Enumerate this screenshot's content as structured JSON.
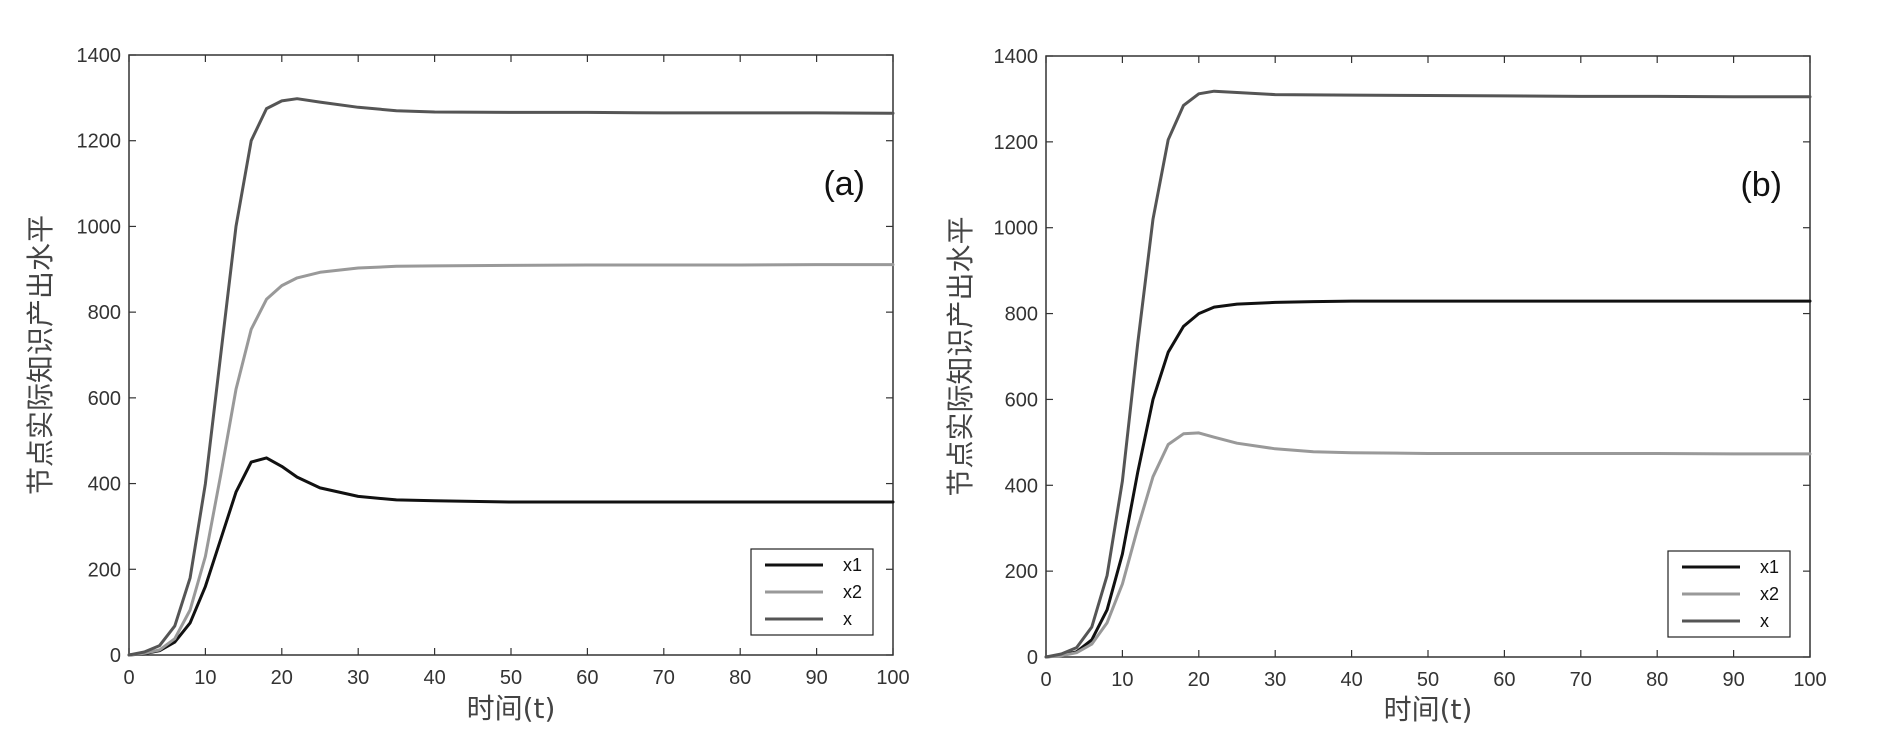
{
  "chart_data": [
    {
      "type": "line",
      "panel_label": "(a)",
      "xlabel": "时间(t)",
      "ylabel": "节点实际知识产出水平",
      "xlim": [
        0,
        100
      ],
      "ylim": [
        0,
        1400
      ],
      "x_ticks": [
        "0",
        "10",
        "20",
        "30",
        "40",
        "50",
        "60",
        "70",
        "80",
        "90",
        "100"
      ],
      "y_ticks": [
        "0",
        "200",
        "400",
        "600",
        "800",
        "1000",
        "1200",
        "1400"
      ],
      "grid": false,
      "legend_position": "bottom-right",
      "series": [
        {
          "name": "x1",
          "color": "#111111",
          "points": [
            [
              0,
              0
            ],
            [
              2,
              3
            ],
            [
              4,
              10
            ],
            [
              6,
              30
            ],
            [
              8,
              75
            ],
            [
              10,
              160
            ],
            [
              12,
              270
            ],
            [
              14,
              380
            ],
            [
              16,
              450
            ],
            [
              18,
              460
            ],
            [
              20,
              440
            ],
            [
              22,
              415
            ],
            [
              25,
              390
            ],
            [
              30,
              370
            ],
            [
              35,
              362
            ],
            [
              40,
              360
            ],
            [
              50,
              357
            ],
            [
              60,
              357
            ],
            [
              70,
              357
            ],
            [
              80,
              357
            ],
            [
              90,
              357
            ],
            [
              100,
              357
            ]
          ]
        },
        {
          "name": "x2",
          "color": "#999999",
          "points": [
            [
              0,
              0
            ],
            [
              2,
              4
            ],
            [
              4,
              12
            ],
            [
              6,
              38
            ],
            [
              8,
              105
            ],
            [
              10,
              230
            ],
            [
              12,
              420
            ],
            [
              14,
              620
            ],
            [
              16,
              760
            ],
            [
              18,
              830
            ],
            [
              20,
              862
            ],
            [
              22,
              880
            ],
            [
              25,
              893
            ],
            [
              30,
              903
            ],
            [
              35,
              907
            ],
            [
              40,
              908
            ],
            [
              50,
              909
            ],
            [
              60,
              910
            ],
            [
              70,
              910
            ],
            [
              80,
              910
            ],
            [
              90,
              911
            ],
            [
              100,
              911
            ]
          ]
        },
        {
          "name": "x",
          "color": "#555555",
          "points": [
            [
              0,
              0
            ],
            [
              2,
              7
            ],
            [
              4,
              22
            ],
            [
              6,
              68
            ],
            [
              8,
              180
            ],
            [
              10,
              400
            ],
            [
              12,
              700
            ],
            [
              14,
              1000
            ],
            [
              16,
              1200
            ],
            [
              18,
              1275
            ],
            [
              20,
              1293
            ],
            [
              22,
              1298
            ],
            [
              25,
              1290
            ],
            [
              30,
              1278
            ],
            [
              35,
              1270
            ],
            [
              40,
              1267
            ],
            [
              50,
              1266
            ],
            [
              60,
              1266
            ],
            [
              70,
              1265
            ],
            [
              80,
              1265
            ],
            [
              90,
              1265
            ],
            [
              100,
              1264
            ]
          ]
        }
      ]
    },
    {
      "type": "line",
      "panel_label": "(b)",
      "xlabel": "时间(t)",
      "ylabel": "节点实际知识产出水平",
      "xlim": [
        0,
        100
      ],
      "ylim": [
        0,
        1400
      ],
      "x_ticks": [
        "0",
        "10",
        "20",
        "30",
        "40",
        "50",
        "60",
        "70",
        "80",
        "90",
        "100"
      ],
      "y_ticks": [
        "0",
        "200",
        "400",
        "600",
        "800",
        "1000",
        "1200",
        "1400"
      ],
      "grid": false,
      "legend_position": "bottom-right",
      "series": [
        {
          "name": "x1",
          "color": "#111111",
          "points": [
            [
              0,
              0
            ],
            [
              2,
              4
            ],
            [
              4,
              12
            ],
            [
              6,
              40
            ],
            [
              8,
              110
            ],
            [
              10,
              240
            ],
            [
              12,
              430
            ],
            [
              14,
              600
            ],
            [
              16,
              710
            ],
            [
              18,
              770
            ],
            [
              20,
              800
            ],
            [
              22,
              815
            ],
            [
              25,
              822
            ],
            [
              30,
              826
            ],
            [
              35,
              828
            ],
            [
              40,
              829
            ],
            [
              50,
              829
            ],
            [
              60,
              829
            ],
            [
              70,
              829
            ],
            [
              80,
              829
            ],
            [
              90,
              829
            ],
            [
              100,
              829
            ]
          ]
        },
        {
          "name": "x2",
          "color": "#999999",
          "points": [
            [
              0,
              0
            ],
            [
              2,
              3
            ],
            [
              4,
              10
            ],
            [
              6,
              30
            ],
            [
              8,
              80
            ],
            [
              10,
              170
            ],
            [
              12,
              300
            ],
            [
              14,
              420
            ],
            [
              16,
              495
            ],
            [
              18,
              520
            ],
            [
              20,
              522
            ],
            [
              22,
              512
            ],
            [
              25,
              498
            ],
            [
              30,
              485
            ],
            [
              35,
              478
            ],
            [
              40,
              476
            ],
            [
              50,
              474
            ],
            [
              60,
              474
            ],
            [
              70,
              474
            ],
            [
              80,
              474
            ],
            [
              90,
              473
            ],
            [
              100,
              473
            ]
          ]
        },
        {
          "name": "x",
          "color": "#555555",
          "points": [
            [
              0,
              0
            ],
            [
              2,
              7
            ],
            [
              4,
              22
            ],
            [
              6,
              70
            ],
            [
              8,
              190
            ],
            [
              10,
              410
            ],
            [
              12,
              730
            ],
            [
              14,
              1020
            ],
            [
              16,
              1205
            ],
            [
              18,
              1285
            ],
            [
              20,
              1312
            ],
            [
              22,
              1318
            ],
            [
              25,
              1315
            ],
            [
              30,
              1310
            ],
            [
              40,
              1309
            ],
            [
              50,
              1308
            ],
            [
              60,
              1307
            ],
            [
              70,
              1306
            ],
            [
              80,
              1306
            ],
            [
              90,
              1305
            ],
            [
              100,
              1305
            ]
          ]
        }
      ]
    }
  ]
}
